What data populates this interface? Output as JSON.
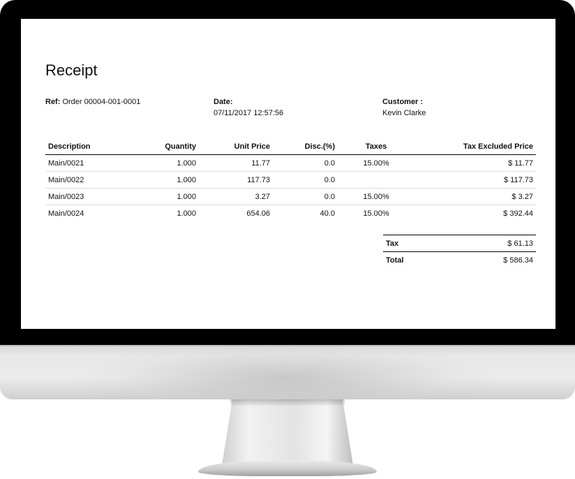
{
  "receipt": {
    "title": "Receipt",
    "ref_label": "Ref:",
    "ref_value": "Order 00004-001-0001",
    "date_label": "Date:",
    "date_value": "07/11/2017 12:57:56",
    "customer_label": "Customer :",
    "customer_value": "Kevin Clarke"
  },
  "table": {
    "headers": [
      "Description",
      "Quantity",
      "Unit Price",
      "Disc.(%)",
      "Taxes",
      "Tax Excluded Price"
    ],
    "rows": [
      {
        "description": "Main/0021",
        "quantity": "1.000",
        "unit_price": "11.77",
        "discount": "0.0",
        "taxes": "15.00%",
        "price": "$ 11.77"
      },
      {
        "description": "Main/0022",
        "quantity": "1.000",
        "unit_price": "117.73",
        "discount": "0.0",
        "taxes": "",
        "price": "$ 117.73"
      },
      {
        "description": "Main/0023",
        "quantity": "1.000",
        "unit_price": "3.27",
        "discount": "0.0",
        "taxes": "15.00%",
        "price": "$ 3.27"
      },
      {
        "description": "Main/0024",
        "quantity": "1.000",
        "unit_price": "654.06",
        "discount": "40.0",
        "taxes": "15.00%",
        "price": "$ 392.44"
      }
    ]
  },
  "totals": {
    "tax_label": "Tax",
    "tax_value": "$ 61.13",
    "total_label": "Total",
    "total_value": "$ 586.34"
  },
  "colors": {
    "bezel": "#000000",
    "screen": "#ffffff",
    "stand": "#d9d9d9"
  }
}
